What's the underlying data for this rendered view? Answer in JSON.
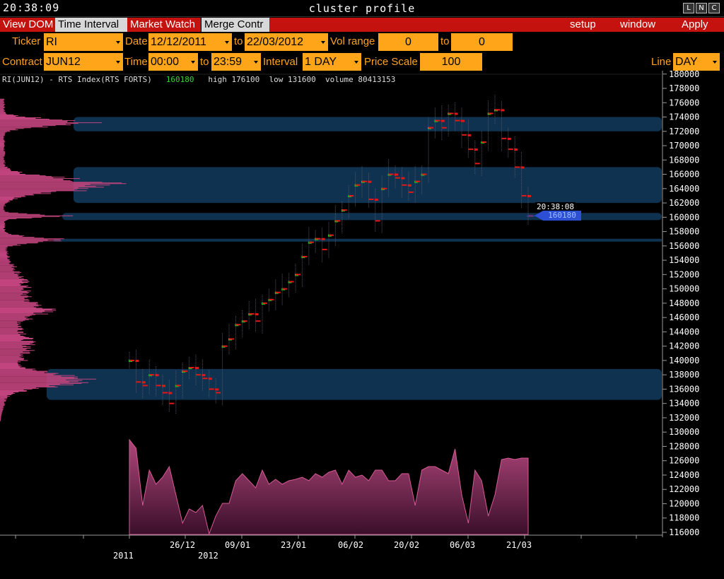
{
  "titlebar": {
    "clock": "20:38:09",
    "title": "cluster profile",
    "buttons": [
      "L",
      "N",
      "C"
    ]
  },
  "menu": {
    "view_dom": "View DOM",
    "time_interval": "Time Interval",
    "market_watch": "Market Watch",
    "merge_contr": "Merge Contr",
    "setup": "setup",
    "window": "window",
    "apply": "Apply"
  },
  "params": {
    "ticker_label": "Ticker",
    "ticker_value": "RI",
    "date_label": "Date",
    "date_from": "12/12/2011",
    "to_label": "to",
    "date_to": "22/03/2012",
    "vol_range_label": "Vol range",
    "vol_from": "0",
    "vol_to": "0",
    "contract_label": "Contract",
    "contract_value": "JUN12",
    "time_label": "Time",
    "time_from": "00:00",
    "time_to": "23:59",
    "interval_label": "Interval",
    "interval_value": "1 DAY",
    "price_scale_label": "Price Scale",
    "price_scale_value": "100",
    "line_label": "Line",
    "line_value": "DAY"
  },
  "info": {
    "instrument": "RI(JUN12) - RTS Index(RTS FORTS)",
    "current": "160180",
    "high_label": "high",
    "high": "176100",
    "low_label": "low",
    "low": "131600",
    "volume_label": "volume",
    "volume": "80413153"
  },
  "price_tag": {
    "time": "20:38:08",
    "price": "160180"
  },
  "colors": {
    "menu_red": "#c4120e",
    "field_orange": "#ffa51a",
    "label_orange": "#ffa21a",
    "volume_pink": "#c2447e",
    "zone_blue": "#0f3553",
    "up_green": "#22c322",
    "down_red": "#e01818",
    "price_tag_blue": "#2d4fd6"
  },
  "chart_data": {
    "type": "bar",
    "y_ticks": [
      180000,
      178000,
      176000,
      174000,
      172000,
      170000,
      168000,
      166000,
      164000,
      162000,
      160000,
      158000,
      156000,
      154000,
      152000,
      150000,
      148000,
      146000,
      144000,
      142000,
      140000,
      138000,
      136000,
      134000,
      132000,
      130000,
      128000,
      126000,
      124000,
      122000,
      120000,
      118000,
      116000
    ],
    "ylim": [
      116000,
      180000
    ],
    "x_tick_labels": [
      "26/12",
      "09/01",
      "23/01",
      "06/02",
      "20/02",
      "06/03",
      "21/03"
    ],
    "year_labels": [
      "2011",
      "2012"
    ],
    "current_price": 160180,
    "high": 176100,
    "low": 131600,
    "volume_zones": [
      {
        "low": 172000,
        "high": 174000
      },
      {
        "low": 162000,
        "high": 167000
      },
      {
        "low": 159600,
        "high": 160600
      },
      {
        "low": 156600,
        "high": 157000
      },
      {
        "low": 134500,
        "high": 138800
      }
    ],
    "daily_close": [
      140000,
      137000,
      136500,
      138000,
      136500,
      135500,
      134000,
      136500,
      138500,
      139000,
      138000,
      137500,
      136000,
      135500,
      142000,
      143000,
      145000,
      145500,
      146500,
      145500,
      148000,
      148500,
      149500,
      150000,
      151000,
      152000,
      154500,
      156500,
      157000,
      155500,
      157500,
      159500,
      161000,
      163000,
      164500,
      165000,
      162500,
      159500,
      164000,
      166000,
      165500,
      164500,
      163500,
      165000,
      166000,
      172500,
      173500,
      172500,
      174500,
      173500,
      171500,
      169500,
      167500,
      170500,
      174500,
      175000,
      171000,
      169500,
      167000,
      163000,
      160180
    ]
  }
}
